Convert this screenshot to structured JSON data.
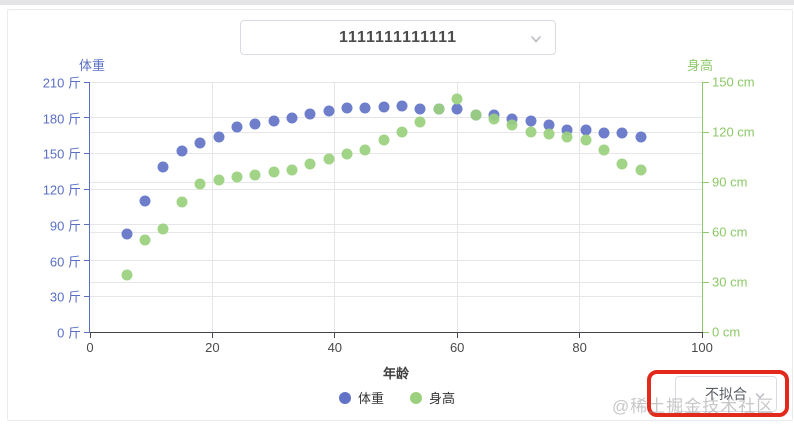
{
  "page": {
    "watermark": "@稀土掘金技术社区"
  },
  "dropdown": {
    "value": "1111111111111",
    "icon": "chevron-down"
  },
  "fit_select": {
    "value": "不拟合",
    "icon": "chevron-down"
  },
  "legend": [
    {
      "label": "体重",
      "color": "#6273c7"
    },
    {
      "label": "身高",
      "color": "#9ad07e"
    }
  ],
  "colors": {
    "weight_blue": "#6273c7",
    "height_green": "#9ad07e",
    "left_axis_text": "#5a6fc4",
    "right_axis_text": "#8cc968",
    "x_axis_text": "#4a4a4a",
    "gridline": "#e6e6e8",
    "annotation_red": "#e2291c"
  },
  "chart_data": {
    "type": "scatter",
    "xlabel": "年龄",
    "x_range": [
      0,
      100
    ],
    "x_ticks": [
      0,
      20,
      40,
      60,
      80,
      100
    ],
    "grid": true,
    "legend_position": "bottom",
    "left_axis": {
      "title": "体重",
      "unit": "斤",
      "range": [
        0,
        210
      ],
      "tick_step": 30,
      "color": "#5a6fc4"
    },
    "right_axis": {
      "title": "身高",
      "unit": "cm",
      "range": [
        0,
        150
      ],
      "tick_step": 30,
      "color": "#8cc968"
    },
    "x": [
      6,
      9,
      12,
      15,
      18,
      21,
      24,
      27,
      30,
      33,
      36,
      39,
      42,
      45,
      48,
      51,
      54,
      57,
      60,
      63,
      66,
      69,
      72,
      75,
      78,
      81,
      84,
      87,
      90
    ],
    "series": [
      {
        "name": "体重",
        "axis": "left",
        "color": "#6273c7",
        "values": [
          82,
          110,
          139,
          152,
          159,
          164,
          172,
          175,
          177,
          180,
          183,
          186,
          188,
          188,
          189,
          190,
          187,
          187,
          187,
          182,
          182,
          179,
          177,
          174,
          170,
          170,
          167,
          167,
          164
        ]
      },
      {
        "name": "身高",
        "axis": "right",
        "color": "#9ad07e",
        "values": [
          34,
          55,
          62,
          78,
          89,
          91,
          93,
          94,
          96,
          97,
          101,
          104,
          107,
          109,
          115,
          120,
          126,
          134,
          140,
          130,
          128,
          124,
          120,
          119,
          117,
          115,
          109,
          101,
          97
        ]
      }
    ]
  }
}
